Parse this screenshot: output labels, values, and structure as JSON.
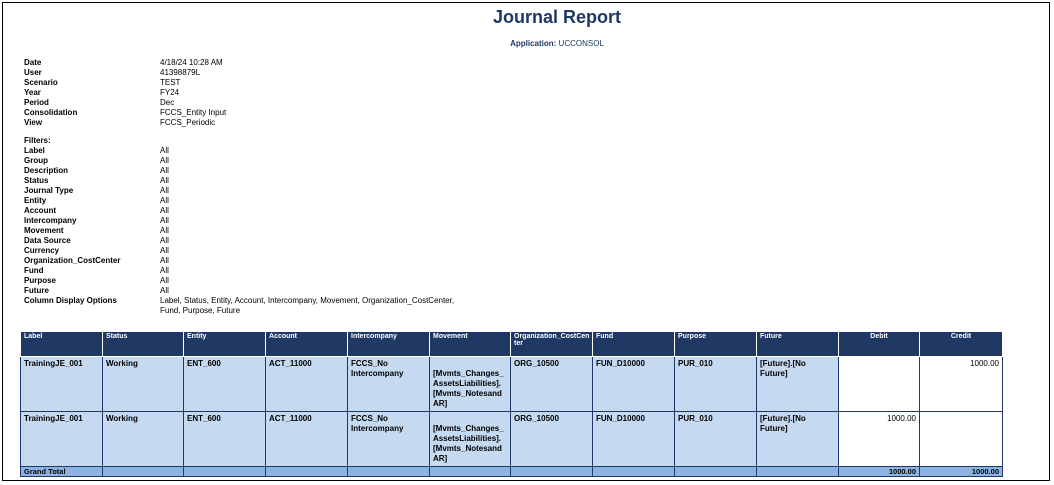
{
  "report": {
    "title": "Journal Report",
    "app_label": "Application:",
    "app_name": "UCCONSOL"
  },
  "meta": [
    {
      "k": "Date",
      "v": "4/18/24 10:28 AM"
    },
    {
      "k": "User",
      "v": "41398879L"
    },
    {
      "k": "Scenario",
      "v": "TEST"
    },
    {
      "k": "Year",
      "v": "FY24"
    },
    {
      "k": "Period",
      "v": "Dec"
    },
    {
      "k": "Consolidation",
      "v": "FCCS_Entity Input"
    },
    {
      "k": "View",
      "v": "FCCS_Periodic"
    }
  ],
  "filters_heading": "Filters:",
  "filters": [
    {
      "k": "Label",
      "v": "All"
    },
    {
      "k": "Group",
      "v": "All"
    },
    {
      "k": "Description",
      "v": "All"
    },
    {
      "k": "Status",
      "v": "All"
    },
    {
      "k": "Journal Type",
      "v": "All"
    },
    {
      "k": "Entity",
      "v": "All"
    },
    {
      "k": "Account",
      "v": "All"
    },
    {
      "k": "Intercompany",
      "v": "All"
    },
    {
      "k": "Movement",
      "v": "All"
    },
    {
      "k": "Data Source",
      "v": "All"
    },
    {
      "k": "Currency",
      "v": "All"
    },
    {
      "k": "Organization_CostCenter",
      "v": "All"
    },
    {
      "k": "Fund",
      "v": "All"
    },
    {
      "k": "Purpose",
      "v": "All"
    },
    {
      "k": "Future",
      "v": "All"
    }
  ],
  "column_options": {
    "k": "Column Display Options",
    "v1": "Label, Status, Entity, Account, Intercompany, Movement, Organization_CostCenter,",
    "v2": "Fund, Purpose, Future"
  },
  "table": {
    "headers": [
      "Label",
      "Status",
      "Entity",
      "Account",
      "Intercompany",
      "Movement",
      "Organization_CostCen ter",
      "Fund",
      "Purpose",
      "Future",
      "Debit",
      "Credit"
    ],
    "rows": [
      {
        "label": "TrainingJE_001",
        "status": "Working",
        "entity": "ENT_600",
        "account": "ACT_11000",
        "intercompany": "FCCS_No Intercompany",
        "movement": "[Mvmts_Changes_ AssetsLiabilities]. [Mvmts_Notesand AR]",
        "org": "ORG_10500",
        "fund": "FUN_D10000",
        "purpose": "PUR_010",
        "future": "[Future].[No Future]",
        "debit": "",
        "credit": "1000.00"
      },
      {
        "label": "TrainingJE_001",
        "status": "Working",
        "entity": "ENT_600",
        "account": "ACT_11000",
        "intercompany": "FCCS_No Intercompany",
        "movement": "[Mvmts_Changes_ AssetsLiabilities]. [Mvmts_Notesand AR]",
        "org": "ORG_10500",
        "fund": "FUN_D10000",
        "purpose": "PUR_010",
        "future": "[Future].[No Future]",
        "debit": "1000.00",
        "credit": ""
      }
    ],
    "total": {
      "label": "Grand Total",
      "debit": "1000.00",
      "credit": "1000.00"
    }
  }
}
